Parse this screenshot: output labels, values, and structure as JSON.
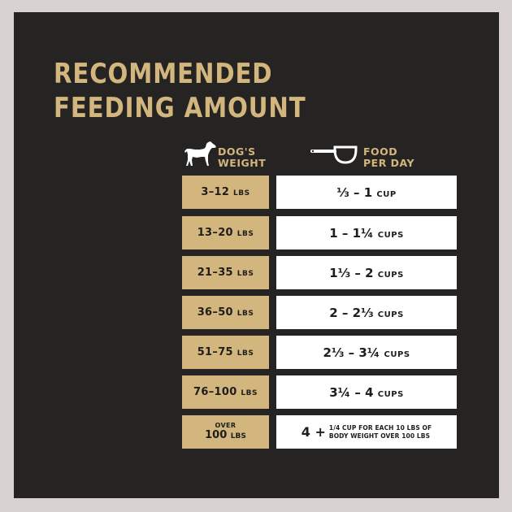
{
  "title": {
    "line1": "RECOMMENDED",
    "line2": "FEEDING AMOUNT"
  },
  "headers": {
    "weight_line1": "DOG'S",
    "weight_line2": "WEIGHT",
    "food_line1": "FOOD",
    "food_line2": "PER DAY"
  },
  "icons": {
    "weight": "dog-icon",
    "food": "measuring-cup-icon"
  },
  "colors": {
    "background": "#252422",
    "gold": "#d3b57e",
    "cell_white": "#ffffff",
    "border": "#d8d3d2"
  },
  "rows": [
    {
      "weight": "3–12",
      "unit": "LBS",
      "amount": "⅓ – 1",
      "amount_unit": "CUP"
    },
    {
      "weight": "13–20",
      "unit": "LBS",
      "amount": "1 – 1¼",
      "amount_unit": "CUPS"
    },
    {
      "weight": "21–35",
      "unit": "LBS",
      "amount": "1⅓ – 2",
      "amount_unit": "CUPS"
    },
    {
      "weight": "36–50",
      "unit": "LBS",
      "amount": "2 – 2⅓",
      "amount_unit": "CUPS"
    },
    {
      "weight": "51–75",
      "unit": "LBS",
      "amount": "2⅓ – 3¼",
      "amount_unit": "CUPS"
    },
    {
      "weight": "76–100",
      "unit": "LBS",
      "amount": "3¼ – 4",
      "amount_unit": "CUPS"
    }
  ],
  "last_row": {
    "over": "OVER",
    "weight": "100",
    "unit": "LBS",
    "amount": "4 +",
    "note_line1": "1/4 CUP FOR EACH 10 LBS OF",
    "note_line2": "BODY WEIGHT OVER 100 LBS"
  }
}
